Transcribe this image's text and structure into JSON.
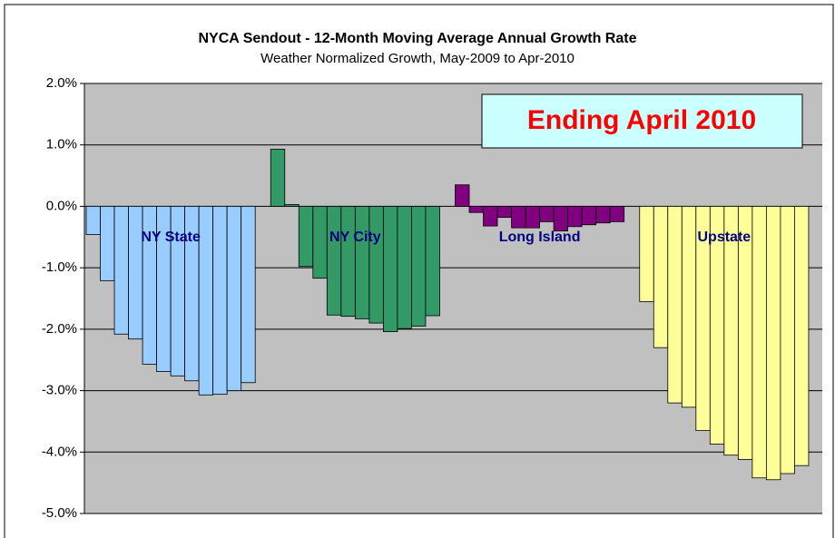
{
  "chart_data": {
    "type": "grouped_bar",
    "title": "NYCA Sendout - 12-Month Moving Average Annual Growth Rate",
    "subtitle": "Weather Normalized Growth, May-2009 to Apr-2010",
    "annotation": "Ending April 2010",
    "ylim": [
      -5,
      2
    ],
    "yticks": [
      {
        "value": 2,
        "label": "2.0%"
      },
      {
        "value": 1,
        "label": "1.0%"
      },
      {
        "value": 0,
        "label": "0.0%"
      },
      {
        "value": -1,
        "label": "-1.0%"
      },
      {
        "value": -2,
        "label": "-2.0%"
      },
      {
        "value": -3,
        "label": "-3.0%"
      },
      {
        "value": -4,
        "label": "-4.0%"
      },
      {
        "value": -5,
        "label": "-5.0%"
      }
    ],
    "grid": true,
    "series": [
      {
        "name": "NY State",
        "color": "#99ccff",
        "values": [
          -0.46,
          -1.21,
          -2.08,
          -2.16,
          -2.57,
          -2.69,
          -2.76,
          -2.84,
          -3.07,
          -3.06,
          -3.0,
          -2.87
        ]
      },
      {
        "name": "NY City",
        "color": "#339966",
        "values": [
          0.93,
          0.03,
          -0.98,
          -1.17,
          -1.77,
          -1.79,
          -1.83,
          -1.9,
          -2.04,
          -1.99,
          -1.95,
          -1.78
        ]
      },
      {
        "name": "Long Island",
        "color": "#800080",
        "values": [
          0.35,
          -0.1,
          -0.32,
          -0.18,
          -0.35,
          -0.35,
          -0.25,
          -0.4,
          -0.33,
          -0.3,
          -0.27,
          -0.25
        ]
      },
      {
        "name": "Upstate",
        "color": "#ffff99",
        "values": [
          -1.55,
          -2.3,
          -3.2,
          -3.27,
          -3.65,
          -3.87,
          -4.05,
          -4.12,
          -4.42,
          -4.45,
          -4.35,
          -4.22
        ]
      }
    ]
  }
}
